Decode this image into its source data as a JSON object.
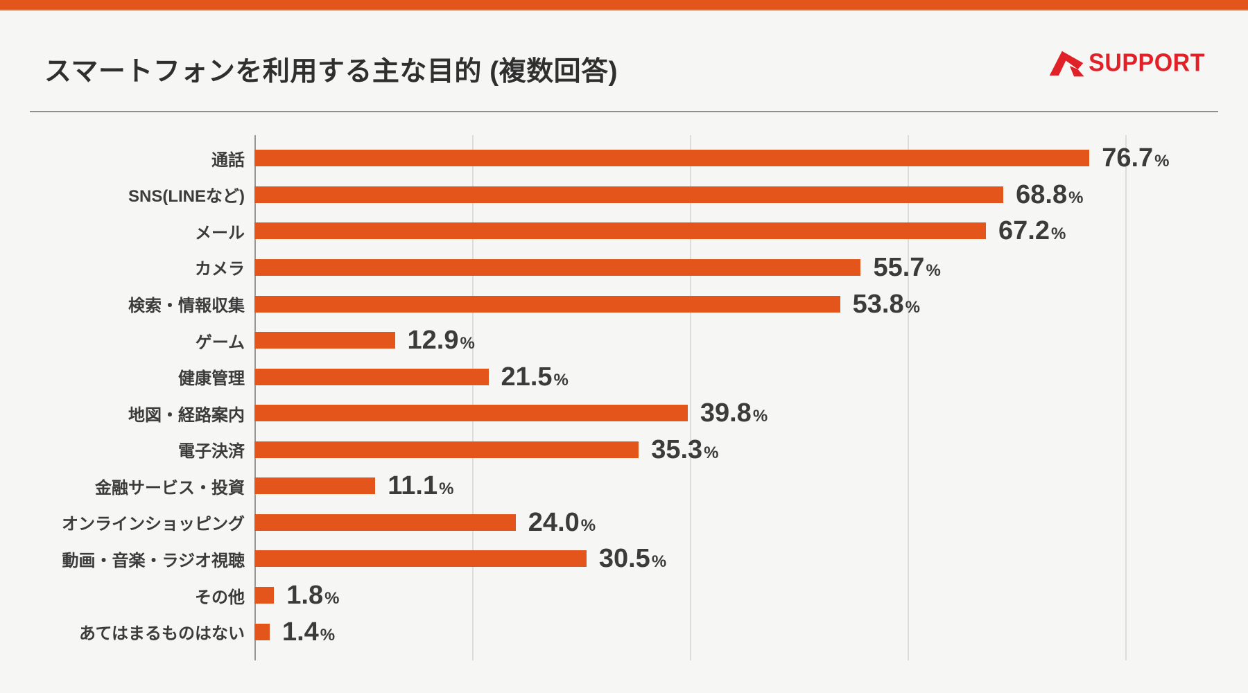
{
  "page": {
    "title": "スマートフォンを利用する主な目的 (複数回答)"
  },
  "logo": {
    "text": "SUPPORT",
    "mark": "r-arrow-mark",
    "color": "#E02128"
  },
  "colors": {
    "accent_orange": "#E4551C",
    "background": "#F6F6F4",
    "text_dark": "#3B3B3B",
    "axis_line": "#979797",
    "gridline": "#DDDDDD"
  },
  "chart_data": {
    "type": "bar",
    "orientation": "horizontal",
    "title": "スマートフォンを利用する主な目的 (複数回答)",
    "xlabel": "",
    "ylabel": "",
    "unit": "%",
    "xlim": [
      0,
      80
    ],
    "ticks_percent": [
      0,
      20,
      40,
      60,
      80
    ],
    "grid": "vertical-only, no tick labels shown",
    "legend": "none",
    "bar_color": "#E4551C",
    "categories": [
      "通話",
      "SNS(LINEなど)",
      "メール",
      "カメラ",
      "検索・情報収集",
      "ゲーム",
      "健康管理",
      "地図・経路案内",
      "電子決済",
      "金融サービス・投資",
      "オンラインショッピング",
      "動画・音楽・ラジオ視聴",
      "その他",
      "あてはまるものはない"
    ],
    "values": [
      76.7,
      68.8,
      67.2,
      55.7,
      53.8,
      12.9,
      21.5,
      39.8,
      35.3,
      11.1,
      24.0,
      30.5,
      1.8,
      1.4
    ],
    "items": [
      {
        "label": "通話",
        "value": "76.7"
      },
      {
        "label": "SNS(LINEなど)",
        "value": "68.8"
      },
      {
        "label": "メール",
        "value": "67.2"
      },
      {
        "label": "カメラ",
        "value": "55.7"
      },
      {
        "label": "検索・情報収集",
        "value": "53.8"
      },
      {
        "label": "ゲーム",
        "value": "12.9"
      },
      {
        "label": "健康管理",
        "value": "21.5"
      },
      {
        "label": "地図・経路案内",
        "value": "39.8"
      },
      {
        "label": "電子決済",
        "value": "35.3"
      },
      {
        "label": "金融サービス・投資",
        "value": "11.1"
      },
      {
        "label": "オンラインショッピング",
        "value": "24.0"
      },
      {
        "label": "動画・音楽・ラジオ視聴",
        "value": "30.5"
      },
      {
        "label": "その他",
        "value": "1.8"
      },
      {
        "label": "あてはまるものはない",
        "value": "1.4"
      }
    ]
  }
}
